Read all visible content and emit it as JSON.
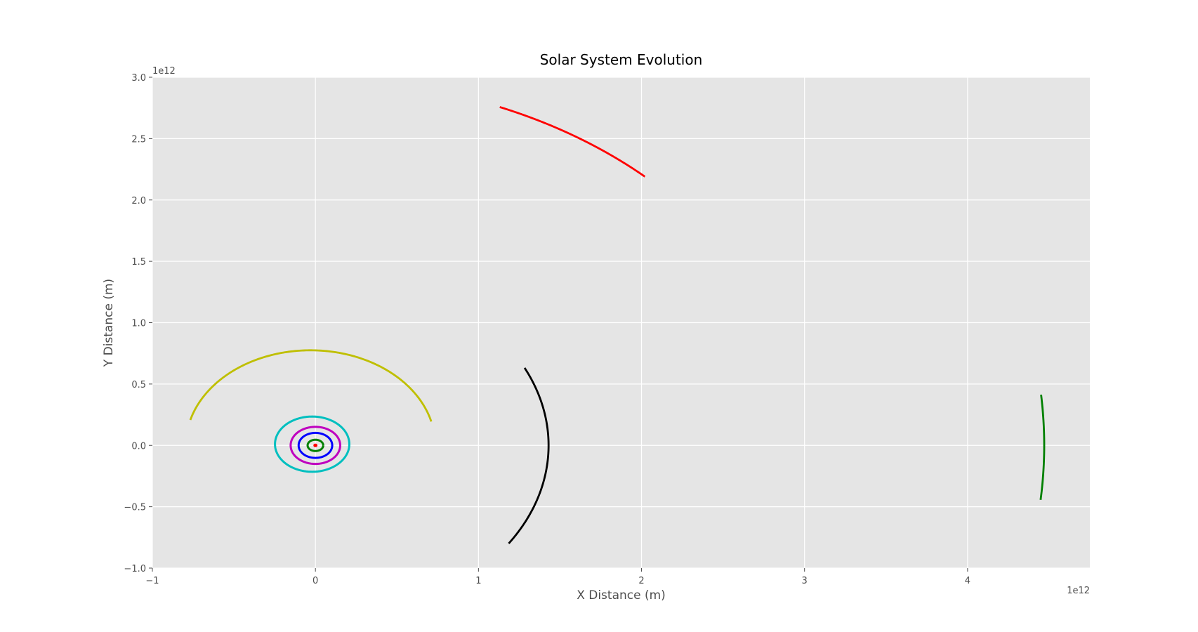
{
  "chart_data": {
    "type": "line",
    "title": "Solar System Evolution",
    "xlabel": "X Distance (m)",
    "ylabel": "Y Distance (m)",
    "x_offset_label": "1e12",
    "y_offset_label": "1e12",
    "xlim": [
      -1,
      4.75
    ],
    "ylim": [
      -1.0,
      3.0
    ],
    "xticks": [
      -1,
      0,
      1,
      2,
      3,
      4
    ],
    "xtick_labels": [
      "−1",
      "0",
      "1",
      "2",
      "3",
      "4"
    ],
    "yticks": [
      -1.0,
      -0.5,
      0.0,
      0.5,
      1.0,
      1.5,
      2.0,
      2.5,
      3.0
    ],
    "ytick_labels": [
      "−1.0",
      "−0.5",
      "0.0",
      "0.5",
      "1.0",
      "1.5",
      "2.0",
      "2.5",
      "3.0"
    ],
    "grid": true,
    "background": "#e5e5e5",
    "grid_color": "#ffffff",
    "series": [
      {
        "color": "#ff0000",
        "kind": "orbit",
        "cx": 0.0,
        "cy": 0.0,
        "rx": 0.006,
        "ry": 0.006,
        "start_deg": 0,
        "end_deg": 360
      },
      {
        "color": "#008000",
        "kind": "orbit",
        "cx": 0.0,
        "cy": 0.0,
        "rx": 0.048,
        "ry": 0.046,
        "start_deg": 0,
        "end_deg": 360
      },
      {
        "color": "#0000ff",
        "kind": "orbit",
        "cx": 0.0,
        "cy": 0.0,
        "rx": 0.103,
        "ry": 0.102,
        "start_deg": 0,
        "end_deg": 360
      },
      {
        "color": "#bf00bf",
        "kind": "orbit",
        "cx": 0.0,
        "cy": 0.0,
        "rx": 0.152,
        "ry": 0.151,
        "start_deg": 0,
        "end_deg": 360
      },
      {
        "color": "#00bfbf",
        "kind": "orbit",
        "cx": -0.02,
        "cy": 0.01,
        "rx": 0.228,
        "ry": 0.225,
        "start_deg": 0,
        "end_deg": 360
      },
      {
        "color": "#bfbf00",
        "kind": "arc",
        "cx": -0.03,
        "cy": 0.0,
        "rx": 0.765,
        "ry": 0.775,
        "start_deg": 14.5,
        "end_deg": 164.5
      },
      {
        "color": "#ff0000",
        "kind": "arc",
        "cx": 0.0,
        "cy": 0.0,
        "rx": 2.98,
        "ry": 2.98,
        "start_deg": 47.3,
        "end_deg": 67.7
      },
      {
        "color": "#000000",
        "kind": "arc",
        "cx": 0.0,
        "cy": 0.0,
        "rx": 1.43,
        "ry": 1.43,
        "start_deg": -34.0,
        "end_deg": 26.2
      },
      {
        "color": "#008000",
        "kind": "arc",
        "cx": 0.0,
        "cy": 0.0,
        "rx": 4.47,
        "ry": 4.47,
        "start_deg": -5.7,
        "end_deg": 5.3
      }
    ]
  }
}
